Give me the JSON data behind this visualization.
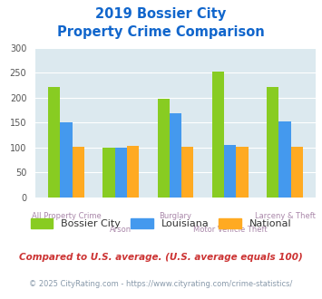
{
  "title_line1": "2019 Bossier City",
  "title_line2": "Property Crime Comparison",
  "categories": [
    "All Property Crime",
    "Arson",
    "Burglary",
    "Motor Vehicle Theft",
    "Larceny & Theft"
  ],
  "bossier_city": [
    222,
    100,
    198,
    252,
    222
  ],
  "louisiana": [
    150,
    100,
    168,
    105,
    152
  ],
  "national": [
    102,
    103,
    102,
    102,
    102
  ],
  "colors": {
    "bossier_city": "#88cc22",
    "louisiana": "#4499ee",
    "national": "#ffaa22"
  },
  "ylim": [
    0,
    300
  ],
  "yticks": [
    0,
    50,
    100,
    150,
    200,
    250,
    300
  ],
  "title_color": "#1166cc",
  "axis_bg": "#dce9ef",
  "grid_color": "#ffffff",
  "label_color": "#aa88aa",
  "footnote1": "Compared to U.S. average. (U.S. average equals 100)",
  "footnote2": "© 2025 CityRating.com - https://www.cityrating.com/crime-statistics/",
  "footnote1_color": "#cc3333",
  "footnote2_color": "#8899aa",
  "legend_labels": [
    "Bossier City",
    "Louisiana",
    "National"
  ]
}
